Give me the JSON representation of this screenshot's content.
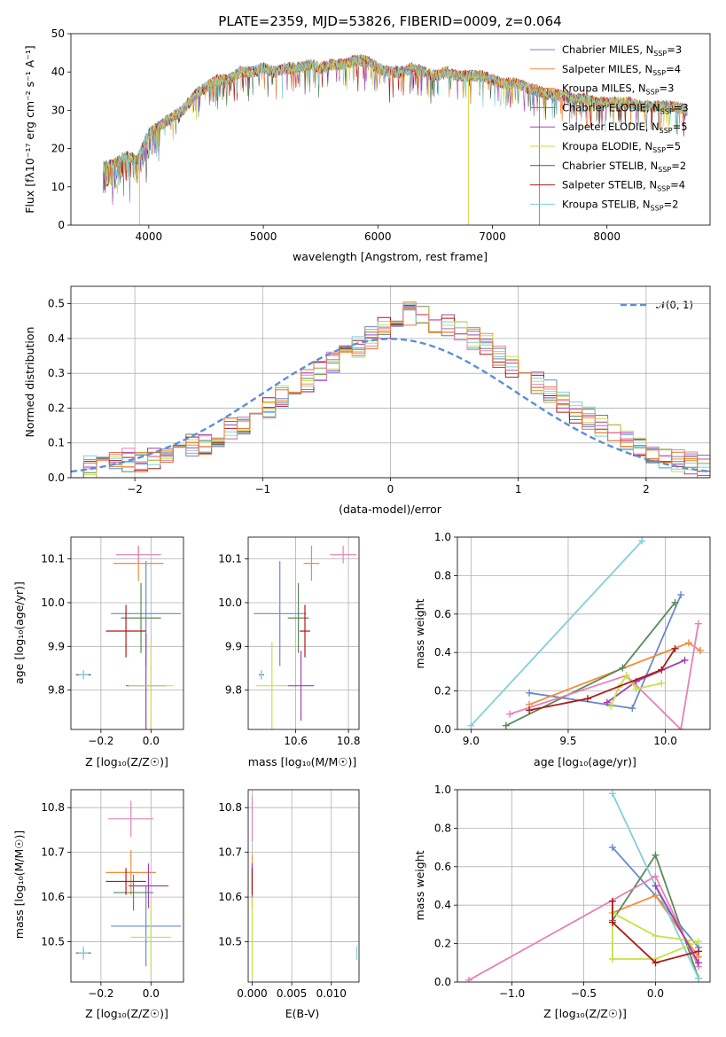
{
  "colors": [
    "#6a89cc",
    "#f58b3b",
    "#e3792b",
    "#5a8a5a",
    "#a040b0",
    "#d4d44a",
    "#555555",
    "#b01818",
    "#7fd0d8",
    "#e582b8",
    "#c8e04a",
    "#3a7a3a"
  ],
  "chart_data": [
    {
      "id": "spectrum",
      "type": "line",
      "title": "PLATE=2359, MJD=53826, FIBERID=0009, z=0.064",
      "xlabel": "wavelength [Angstrom, rest frame]",
      "ylabel": "Flux [fλ10⁻¹⁷ erg cm⁻² s⁻¹ A⁻¹]",
      "xlim": [
        3320,
        8900
      ],
      "ylim": [
        0,
        50
      ],
      "xticks": [
        "4000",
        "5000",
        "6000",
        "7000",
        "8000"
      ],
      "xtick_values": [
        4000,
        5000,
        6000,
        7000,
        8000
      ],
      "yticks": [
        "0",
        "10",
        "20",
        "30",
        "40",
        "50"
      ],
      "ytick_values": [
        0,
        10,
        20,
        30,
        40,
        50
      ],
      "legend_position": "upper-right",
      "grid": false,
      "series": [
        {
          "name": "Chabrier MILES, N_SSP=3"
        },
        {
          "name": "Salpeter MILES, N_SSP=4"
        },
        {
          "name": "Kroupa MILES, N_SSP=3"
        },
        {
          "name": "Chabrier ELODIE, N_SSP=3"
        },
        {
          "name": "Salpeter ELODIE, N_SSP=5"
        },
        {
          "name": "Kroupa ELODIE, N_SSP=5"
        },
        {
          "name": "Chabrier STELIB, N_SSP=2"
        },
        {
          "name": "Salpeter STELIB, N_SSP=4"
        },
        {
          "name": "Kroupa STELIB, N_SSP=2"
        }
      ],
      "envelope": {
        "x": [
          3600,
          3700,
          3800,
          3900,
          4000,
          4100,
          4200,
          4300,
          4400,
          4500,
          4600,
          4700,
          4800,
          4900,
          5000,
          5100,
          5200,
          5300,
          5400,
          5500,
          5600,
          5700,
          5800,
          5900,
          6000,
          6100,
          6200,
          6300,
          6400,
          6500,
          6600,
          6700,
          6800,
          6900,
          7000,
          7100,
          7200,
          7300,
          7400,
          7500,
          7600,
          7700,
          7800,
          7900,
          8000,
          8100,
          8200,
          8300,
          8400,
          8500,
          8600,
          8700
        ],
        "y": [
          15,
          16,
          18,
          17,
          24,
          26,
          28,
          30,
          34,
          36,
          38,
          38,
          40,
          40,
          41,
          40,
          41,
          41,
          42,
          41,
          42,
          42,
          43,
          43,
          41,
          40,
          40,
          41,
          40,
          39,
          40,
          39,
          39,
          39,
          38,
          37,
          37,
          36,
          35,
          34,
          34,
          33,
          33,
          32,
          32,
          32,
          32,
          31,
          31,
          31,
          31,
          30
        ]
      },
      "dips": [
        {
          "x": 3920,
          "y": 0
        },
        {
          "x": 6790,
          "y": 0
        },
        {
          "x": 7410,
          "y": 0
        }
      ]
    },
    {
      "id": "residuals",
      "type": "histogram",
      "xlabel": "(data-model)/error",
      "ylabel": "Normed distribution",
      "xlim": [
        -2.5,
        2.5
      ],
      "ylim": [
        0,
        0.55
      ],
      "xticks": [
        "−2",
        "−1",
        "0",
        "1",
        "2"
      ],
      "xtick_values": [
        -2,
        -1,
        0,
        1,
        2
      ],
      "yticks": [
        "0.0",
        "0.1",
        "0.2",
        "0.3",
        "0.4",
        "0.5"
      ],
      "ytick_values": [
        0,
        0.1,
        0.2,
        0.3,
        0.4,
        0.5
      ],
      "grid": true,
      "legend": "𝒩(0, 1)",
      "legend_position": "upper-right",
      "bin_width": 0.1,
      "bin_start": -2.5,
      "base_heights": [
        0.02,
        0.03,
        0.03,
        0.04,
        0.05,
        0.05,
        0.06,
        0.07,
        0.08,
        0.09,
        0.1,
        0.12,
        0.14,
        0.16,
        0.18,
        0.2,
        0.23,
        0.26,
        0.28,
        0.3,
        0.33,
        0.35,
        0.38,
        0.4,
        0.43,
        0.45,
        0.47,
        0.46,
        0.45,
        0.44,
        0.42,
        0.4,
        0.38,
        0.35,
        0.32,
        0.3,
        0.27,
        0.25,
        0.22,
        0.19,
        0.17,
        0.15,
        0.12,
        0.1,
        0.08,
        0.07,
        0.06,
        0.05,
        0.04,
        0.03
      ]
    },
    {
      "id": "age-vs-Z",
      "type": "errorbar",
      "xlabel": "Z [log₁₀(Z/Z☉)]",
      "ylabel": "age  [log₁₀(age/yr)]",
      "xlim": [
        -0.32,
        0.13
      ],
      "ylim": [
        9.71,
        10.15
      ],
      "xticks": [
        "−0.2",
        "0.0"
      ],
      "xtick_values": [
        -0.2,
        0.0
      ],
      "yticks": [
        "9.8",
        "9.9",
        "10.0",
        "10.1"
      ],
      "ytick_values": [
        9.8,
        9.9,
        10.0,
        10.1
      ],
      "grid": true,
      "points": [
        {
          "x": -0.02,
          "xerr": 0.14,
          "y": 9.975,
          "yerr": 0.12,
          "c": 0
        },
        {
          "x": -0.05,
          "xerr": 0.1,
          "y": 10.09,
          "yerr": 0.04,
          "c": 1
        },
        {
          "x": -0.04,
          "xerr": 0.08,
          "y": 9.965,
          "yerr": 0.08,
          "c": 3
        },
        {
          "x": -0.02,
          "xerr": 0.08,
          "y": 9.81,
          "yerr": 0.12,
          "c": 4
        },
        {
          "x": -0.27,
          "xerr": 0.03,
          "y": 9.835,
          "yerr": 0.01,
          "c": 6
        },
        {
          "x": -0.1,
          "xerr": 0.08,
          "y": 9.935,
          "yerr": 0.06,
          "c": 7
        },
        {
          "x": -0.27,
          "xerr": 0.02,
          "y": 9.835,
          "yerr": 0.01,
          "c": 8
        },
        {
          "x": -0.05,
          "xerr": 0.09,
          "y": 10.11,
          "yerr": 0.02,
          "c": 9
        },
        {
          "x": 0.0,
          "xerr": 0.09,
          "y": 9.81,
          "yerr": 0.1,
          "c": 10
        }
      ]
    },
    {
      "id": "age-vs-mass",
      "type": "errorbar",
      "xlabel": "mass [log₁₀(M/M☉)]",
      "ylabel": "",
      "xlim": [
        10.42,
        10.84
      ],
      "ylim": [
        9.71,
        10.15
      ],
      "xticks": [
        "10.6",
        "10.8"
      ],
      "xtick_values": [
        10.6,
        10.8
      ],
      "yticks": [
        "9.8",
        "9.9",
        "10.0",
        "10.1"
      ],
      "ytick_values": [
        9.8,
        9.9,
        10.0,
        10.1
      ],
      "grid": true,
      "points": [
        {
          "x": 10.54,
          "xerr": 0.1,
          "y": 9.975,
          "yerr": 0.12,
          "c": 0
        },
        {
          "x": 10.66,
          "xerr": 0.03,
          "y": 10.09,
          "yerr": 0.04,
          "c": 1
        },
        {
          "x": 10.61,
          "xerr": 0.04,
          "y": 9.965,
          "yerr": 0.08,
          "c": 3
        },
        {
          "x": 10.62,
          "xerr": 0.05,
          "y": 9.81,
          "yerr": 0.08,
          "c": 4
        },
        {
          "x": 10.47,
          "xerr": 0.01,
          "y": 9.835,
          "yerr": 0.01,
          "c": 6
        },
        {
          "x": 10.635,
          "xerr": 0.02,
          "y": 9.935,
          "yerr": 0.06,
          "c": 7
        },
        {
          "x": 10.47,
          "xerr": 0.005,
          "y": 9.835,
          "yerr": 0.01,
          "c": 8
        },
        {
          "x": 10.78,
          "xerr": 0.05,
          "y": 10.11,
          "yerr": 0.02,
          "c": 9
        },
        {
          "x": 10.51,
          "xerr": 0.06,
          "y": 9.81,
          "yerr": 0.1,
          "c": 10
        }
      ]
    },
    {
      "id": "weight-vs-age",
      "type": "line",
      "xlabel": "age  [log₁₀(age/yr)]",
      "ylabel": "mass weight",
      "xlim": [
        8.93,
        10.23
      ],
      "ylim": [
        0,
        1
      ],
      "xticks": [
        "9.0",
        "9.5",
        "10.0"
      ],
      "xtick_values": [
        9.0,
        9.5,
        10.0
      ],
      "yticks": [
        "0.0",
        "0.2",
        "0.4",
        "0.6",
        "0.8",
        "1.0"
      ],
      "ytick_values": [
        0,
        0.2,
        0.4,
        0.6,
        0.8,
        1.0
      ],
      "grid": true,
      "series": [
        {
          "c": 0,
          "x": [
            9.3,
            9.83,
            10.08
          ],
          "y": [
            0.19,
            0.11,
            0.7
          ]
        },
        {
          "c": 1,
          "x": [
            9.3,
            10.12,
            10.18
          ],
          "y": [
            0.13,
            0.45,
            0.41
          ]
        },
        {
          "c": 3,
          "x": [
            9.18,
            9.78,
            10.05
          ],
          "y": [
            0.02,
            0.32,
            0.66
          ]
        },
        {
          "c": 4,
          "x": [
            9.7,
            9.85,
            10.1
          ],
          "y": [
            0.14,
            0.25,
            0.36
          ]
        },
        {
          "c": 8,
          "x": [
            9.0,
            9.88
          ],
          "y": [
            0.02,
            0.98
          ]
        },
        {
          "c": 9,
          "x": [
            9.2,
            9.8,
            10.08,
            10.17
          ],
          "y": [
            0.08,
            0.28,
            0.0,
            0.55
          ]
        },
        {
          "c": 10,
          "x": [
            9.72,
            9.76,
            9.8,
            9.85,
            9.98
          ],
          "y": [
            0.12,
            0.22,
            0.28,
            0.21,
            0.24
          ]
        },
        {
          "c": 7,
          "x": [
            9.3,
            9.6,
            9.98,
            10.05
          ],
          "y": [
            0.1,
            0.16,
            0.31,
            0.42
          ]
        }
      ]
    },
    {
      "id": "mass-vs-Z",
      "type": "errorbar",
      "xlabel": "Z [log₁₀(Z/Z☉)]",
      "ylabel": "mass [log₁₀(M/M☉)]",
      "xlim": [
        -0.32,
        0.13
      ],
      "ylim": [
        10.41,
        10.84
      ],
      "xticks": [
        "−0.2",
        "0.0"
      ],
      "xtick_values": [
        -0.2,
        0.0
      ],
      "yticks": [
        "10.5",
        "10.6",
        "10.7",
        "10.8"
      ],
      "ytick_values": [
        10.5,
        10.6,
        10.7,
        10.8
      ],
      "grid": true,
      "points": [
        {
          "x": -0.02,
          "xerr": 0.14,
          "y": 10.535,
          "yerr": 0.09,
          "c": 0
        },
        {
          "x": -0.08,
          "xerr": 0.1,
          "y": 10.655,
          "yerr": 0.05,
          "c": 1
        },
        {
          "x": -0.07,
          "xerr": 0.08,
          "y": 10.61,
          "yerr": 0.04,
          "c": 3
        },
        {
          "x": -0.01,
          "xerr": 0.08,
          "y": 10.625,
          "yerr": 0.05,
          "c": 4
        },
        {
          "x": -0.27,
          "xerr": 0.03,
          "y": 10.475,
          "yerr": 0.01,
          "c": 6
        },
        {
          "x": -0.1,
          "xerr": 0.08,
          "y": 10.635,
          "yerr": 0.03,
          "c": 7
        },
        {
          "x": -0.27,
          "xerr": 0.02,
          "y": 10.475,
          "yerr": 0.015,
          "c": 8
        },
        {
          "x": -0.08,
          "xerr": 0.09,
          "y": 10.775,
          "yerr": 0.04,
          "c": 9
        },
        {
          "x": 0.0,
          "xerr": 0.08,
          "y": 10.51,
          "yerr": 0.08,
          "c": 10
        }
      ]
    },
    {
      "id": "mass-vs-EBV",
      "type": "errorbar",
      "xlabel": "E(B-V)",
      "ylabel": "",
      "xlim": [
        -0.0005,
        0.0135
      ],
      "ylim": [
        10.41,
        10.84
      ],
      "xticks": [
        "0.000",
        "0.005",
        "0.010"
      ],
      "xtick_values": [
        0,
        0.005,
        0.01
      ],
      "yticks": [
        "10.5",
        "10.6",
        "10.7",
        "10.8"
      ],
      "ytick_values": [
        10.5,
        10.6,
        10.7,
        10.8
      ],
      "grid": true,
      "points": [
        {
          "x": 0.0,
          "xerr": 0,
          "y": 10.775,
          "yerr": 0.05,
          "c": 9
        },
        {
          "x": 0.0,
          "xerr": 0,
          "y": 10.655,
          "yerr": 0.04,
          "c": 1
        },
        {
          "x": 0.0,
          "xerr": 0,
          "y": 10.625,
          "yerr": 0.05,
          "c": 4
        },
        {
          "x": 0.0,
          "xerr": 0,
          "y": 10.635,
          "yerr": 0.03,
          "c": 7
        },
        {
          "x": 0.0,
          "xerr": 0,
          "y": 10.51,
          "yerr": 0.09,
          "c": 10
        },
        {
          "x": 0.0132,
          "xerr": 0,
          "y": 10.475,
          "yerr": 0.015,
          "c": 8
        }
      ]
    },
    {
      "id": "weight-vs-Z",
      "type": "line",
      "xlabel": "Z [log₁₀(Z/Z☉)]",
      "ylabel": "mass weight",
      "xlim": [
        -1.38,
        0.38
      ],
      "ylim": [
        0,
        1
      ],
      "xticks": [
        "−1.0",
        "−0.5",
        "0.0"
      ],
      "xtick_values": [
        -1.0,
        -0.5,
        0.0
      ],
      "yticks": [
        "0.0",
        "0.2",
        "0.4",
        "0.6",
        "0.8",
        "1.0"
      ],
      "ytick_values": [
        0,
        0.2,
        0.4,
        0.6,
        0.8,
        1.0
      ],
      "grid": true,
      "series": [
        {
          "c": 0,
          "x": [
            -0.3,
            0.0,
            0.3
          ],
          "y": [
            0.7,
            0.45,
            0.18
          ]
        },
        {
          "c": 1,
          "x": [
            -0.3,
            0.0,
            0.3
          ],
          "y": [
            0.36,
            0.45,
            0.13
          ]
        },
        {
          "c": 3,
          "x": [
            -0.3,
            0.0,
            0.3
          ],
          "y": [
            0.32,
            0.66,
            0.02
          ]
        },
        {
          "c": 8,
          "x": [
            -0.3,
            0.3
          ],
          "y": [
            0.98,
            0.02
          ]
        },
        {
          "c": 9,
          "x": [
            -1.3,
            0.0,
            0.3
          ],
          "y": [
            0.01,
            0.55,
            0.08
          ]
        },
        {
          "c": 10,
          "x": [
            -0.3,
            -0.3,
            0.0,
            0.3,
            0.0,
            -0.3
          ],
          "y": [
            0.12,
            0.36,
            0.24,
            0.21,
            0.12,
            0.12
          ]
        },
        {
          "c": 7,
          "x": [
            -0.3,
            -0.3,
            0.0,
            0.3
          ],
          "y": [
            0.42,
            0.31,
            0.1,
            0.16
          ]
        },
        {
          "c": 4,
          "x": [
            0.0,
            0.3
          ],
          "y": [
            0.5,
            0.1
          ]
        }
      ]
    }
  ]
}
